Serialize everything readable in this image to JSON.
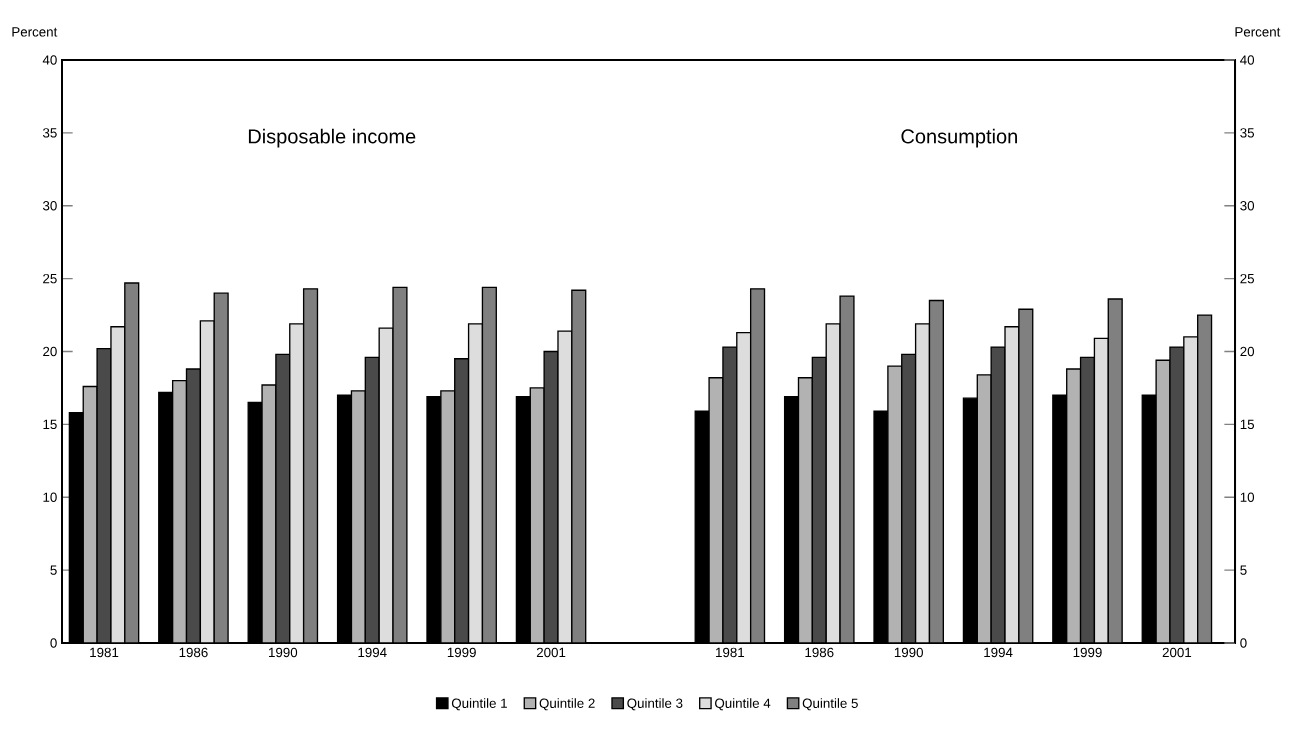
{
  "chart_data": {
    "type": "bar",
    "ylabel": "Percent",
    "y2label": "Percent",
    "categories": [
      "1981",
      "1986",
      "1990",
      "1994",
      "1999",
      "2001",
      null,
      "1981",
      "1986",
      "1990",
      "1994",
      "1999",
      "2001"
    ],
    "series": [
      {
        "name": "Quintile 1",
        "color": "#000000",
        "values": [
          15.8,
          17.2,
          16.5,
          17.0,
          16.9,
          16.9,
          null,
          15.9,
          16.9,
          15.9,
          16.8,
          17.0,
          17.0
        ]
      },
      {
        "name": "Quintile 2",
        "color": "#b2b2b2",
        "values": [
          17.6,
          18.0,
          17.7,
          17.3,
          17.3,
          17.5,
          null,
          18.2,
          18.2,
          19.0,
          18.4,
          18.8,
          19.4
        ]
      },
      {
        "name": "Quintile 3",
        "color": "#4a4a4a",
        "values": [
          20.2,
          18.8,
          19.8,
          19.6,
          19.5,
          20.0,
          null,
          20.3,
          19.6,
          19.8,
          20.3,
          19.6,
          20.3
        ]
      },
      {
        "name": "Quintile 4",
        "color": "#dddddd",
        "values": [
          21.7,
          22.1,
          21.9,
          21.6,
          21.9,
          21.4,
          null,
          21.3,
          21.9,
          21.9,
          21.7,
          20.9,
          21.0
        ]
      },
      {
        "name": "Quintile 5",
        "color": "#808080",
        "values": [
          24.7,
          24.0,
          24.3,
          24.4,
          24.4,
          24.2,
          null,
          24.3,
          23.8,
          23.5,
          22.9,
          23.6,
          22.5
        ]
      }
    ],
    "ylim": [
      0,
      40
    ],
    "yticks": [
      0,
      5,
      10,
      15,
      20,
      25,
      30,
      35,
      40
    ],
    "y2lim": [
      0,
      40
    ],
    "y2ticks": [
      0,
      5,
      10,
      15,
      20,
      25,
      30,
      35,
      40
    ],
    "annotations": [
      "Disposable income",
      "Consumption"
    ],
    "legend": "bottom"
  }
}
